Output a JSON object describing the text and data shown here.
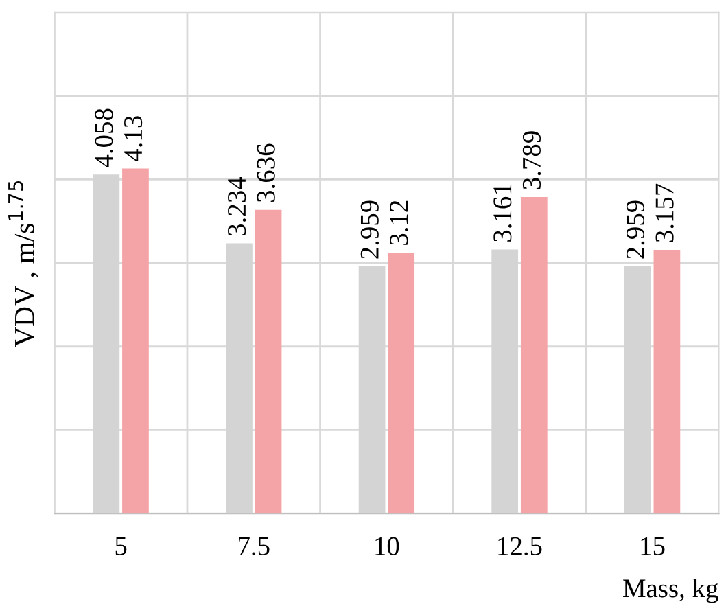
{
  "chart_data": {
    "type": "bar",
    "xlabel": "Mass, kg",
    "ylabel": "VDV , m/s$^{1.75}$",
    "categories": [
      "5",
      "7.5",
      "10",
      "12.5",
      "15"
    ],
    "series": [
      {
        "color": "#d4d4d4",
        "values": [
          4.058,
          3.234,
          2.959,
          3.161,
          2.959
        ]
      },
      {
        "color": "#f4a3a6",
        "values": [
          4.13,
          3.636,
          3.12,
          3.789,
          3.157
        ]
      }
    ],
    "ylim": [
      0,
      6
    ],
    "yticks": [
      {
        "value": 0,
        "label": null
      },
      {
        "value": 1,
        "label": null
      },
      {
        "value": 2,
        "label": null
      },
      {
        "value": 3,
        "label": null
      },
      {
        "value": 4,
        "label": null
      },
      {
        "value": 5,
        "label": null
      },
      {
        "value": 6,
        "label": null
      }
    ],
    "grid": true,
    "data_labels": true
  }
}
